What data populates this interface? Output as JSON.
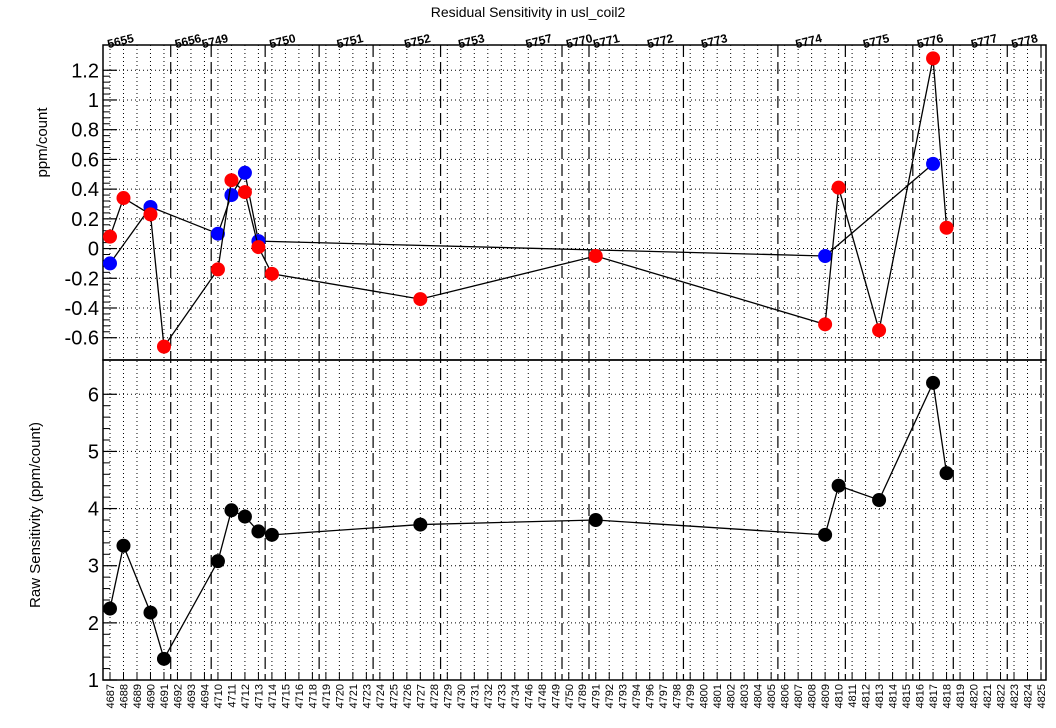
{
  "title": "Residual Sensitivity in usl_coil2",
  "chart_data": [
    {
      "type": "scatter",
      "panel": "top",
      "ylabel": "ppm/count",
      "ylim": [
        -0.75,
        1.37
      ],
      "y_ticks": [
        "-0.6",
        "-0.4",
        "-0.2",
        "0",
        "0.2",
        "0.4",
        "0.6",
        "0.8",
        "1",
        "1.2"
      ],
      "y_tick_values": [
        -0.6,
        -0.4,
        -0.2,
        0,
        0.2,
        0.4,
        0.6,
        0.8,
        1.0,
        1.2
      ],
      "x": [
        "4687",
        "4688",
        "4690",
        "4691",
        "4710",
        "4711",
        "4712",
        "4713",
        "4714",
        "4727",
        "4791",
        "4809",
        "4810",
        "4813",
        "4817",
        "4818"
      ],
      "series": [
        {
          "color": "#0000ff",
          "points": [
            {
              "x": "4687",
              "y": -0.1
            },
            {
              "x": "4690",
              "y": 0.28
            },
            {
              "x": "4710",
              "y": 0.1
            },
            {
              "x": "4711",
              "y": 0.36
            },
            {
              "x": "4712",
              "y": 0.51
            },
            {
              "x": "4713",
              "y": 0.05
            },
            {
              "x": "4809",
              "y": -0.05
            },
            {
              "x": "4817",
              "y": 0.57
            }
          ]
        },
        {
          "color": "#ff0000",
          "points": [
            {
              "x": "4687",
              "y": 0.08
            },
            {
              "x": "4688",
              "y": 0.34
            },
            {
              "x": "4690",
              "y": 0.23
            },
            {
              "x": "4691",
              "y": -0.66
            },
            {
              "x": "4710",
              "y": -0.14
            },
            {
              "x": "4711",
              "y": 0.46
            },
            {
              "x": "4712",
              "y": 0.38
            },
            {
              "x": "4713",
              "y": 0.01
            },
            {
              "x": "4714",
              "y": -0.17
            },
            {
              "x": "4727",
              "y": -0.34
            },
            {
              "x": "4791",
              "y": -0.05
            },
            {
              "x": "4809",
              "y": -0.51
            },
            {
              "x": "4810",
              "y": 0.41
            },
            {
              "x": "4813",
              "y": -0.55
            },
            {
              "x": "4817",
              "y": 1.28
            },
            {
              "x": "4818",
              "y": 0.14
            }
          ]
        }
      ]
    },
    {
      "type": "line",
      "panel": "bottom",
      "ylabel": "Raw Sensitivity (ppm/count)",
      "ylim": [
        1.0,
        6.6
      ],
      "y_ticks": [
        "1",
        "2",
        "3",
        "4",
        "5",
        "6"
      ],
      "y_tick_values": [
        1,
        2,
        3,
        4,
        5,
        6
      ],
      "series": [
        {
          "color": "#000000",
          "points": [
            {
              "x": "4687",
              "y": 2.25
            },
            {
              "x": "4688",
              "y": 3.35
            },
            {
              "x": "4690",
              "y": 2.18
            },
            {
              "x": "4691",
              "y": 1.37
            },
            {
              "x": "4710",
              "y": 3.08
            },
            {
              "x": "4711",
              "y": 3.97
            },
            {
              "x": "4712",
              "y": 3.86
            },
            {
              "x": "4713",
              "y": 3.6
            },
            {
              "x": "4714",
              "y": 3.54
            },
            {
              "x": "4727",
              "y": 3.72
            },
            {
              "x": "4791",
              "y": 3.8
            },
            {
              "x": "4809",
              "y": 3.54
            },
            {
              "x": "4810",
              "y": 4.4
            },
            {
              "x": "4813",
              "y": 4.15
            },
            {
              "x": "4817",
              "y": 6.2
            },
            {
              "x": "4818",
              "y": 4.62
            }
          ]
        }
      ]
    }
  ],
  "x_tick_labels": [
    "4687",
    "4688",
    "4689",
    "4690",
    "4691",
    "4692",
    "4693",
    "4694",
    "4710",
    "4711",
    "4712",
    "4713",
    "4714",
    "4715",
    "4716",
    "4718",
    "4719",
    "4720",
    "4721",
    "4723",
    "4724",
    "4725",
    "4726",
    "4727",
    "4728",
    "4729",
    "4730",
    "4731",
    "4732",
    "4733",
    "4734",
    "4746",
    "4748",
    "4749",
    "4750",
    "4789",
    "4791",
    "4792",
    "4793",
    "4794",
    "4796",
    "4797",
    "4798",
    "4799",
    "4800",
    "4801",
    "4802",
    "4803",
    "4804",
    "4805",
    "4806",
    "4807",
    "4808",
    "4809",
    "4810",
    "4811",
    "4812",
    "4813",
    "4814",
    "4815",
    "4816",
    "4817",
    "4818",
    "4819",
    "4820",
    "4821",
    "4822",
    "4823",
    "4824",
    "4825"
  ],
  "top_run_labels": [
    {
      "label": "5655",
      "at": "4688"
    },
    {
      "label": "5656",
      "at": "4693"
    },
    {
      "label": "5749",
      "at": "4710"
    },
    {
      "label": "5750",
      "at": "4715"
    },
    {
      "label": "5751",
      "at": "4721"
    },
    {
      "label": "5752",
      "at": "4727"
    },
    {
      "label": "5753",
      "at": "4731"
    },
    {
      "label": "5757",
      "at": "4748"
    },
    {
      "label": "5770",
      "at": "4789"
    },
    {
      "label": "5771",
      "at": "4792"
    },
    {
      "label": "5772",
      "at": "4797"
    },
    {
      "label": "5773",
      "at": "4801"
    },
    {
      "label": "5774",
      "at": "4808"
    },
    {
      "label": "5775",
      "at": "4813"
    },
    {
      "label": "5776",
      "at": "4817"
    },
    {
      "label": "5777",
      "at": "4821"
    },
    {
      "label": "5778",
      "at": "4824"
    }
  ],
  "run_boundaries": [
    "4692",
    "4710",
    "4714",
    "4719",
    "4724",
    "4729",
    "4747",
    "4750",
    "4791",
    "4795",
    "4799",
    "4806",
    "4811",
    "4816",
    "4819",
    "4823",
    "4825"
  ]
}
